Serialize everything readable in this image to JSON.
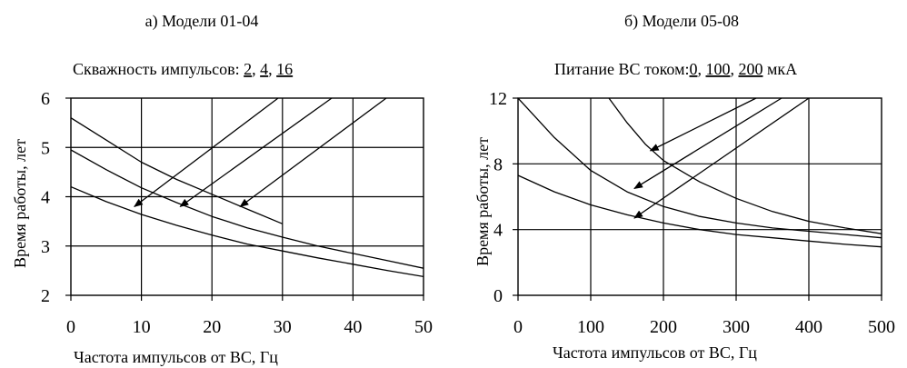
{
  "chart_data": [
    {
      "type": "line",
      "title": "а) Модели 01-04",
      "subtitle": {
        "prefix": "Скважность импульсов:",
        "values": [
          "2",
          "4",
          "16"
        ],
        "separators": [
          ",",
          ","
        ]
      },
      "xlabel": "Частота импульсов от ВС, Гц",
      "ylabel": "Время работы, лет",
      "xlim": [
        0,
        50
      ],
      "ylim": [
        2,
        6
      ],
      "x_ticks": [
        "0",
        "10",
        "20",
        "30",
        "40",
        "50"
      ],
      "y_ticks": [
        "2",
        "3",
        "4",
        "5",
        "6"
      ],
      "grid": true,
      "series": [
        {
          "name": "2",
          "x": [
            0,
            5,
            10,
            15,
            20,
            25,
            30,
            35,
            40,
            45,
            50
          ],
          "y": [
            4.2,
            3.9,
            3.64,
            3.42,
            3.22,
            3.04,
            2.9,
            2.76,
            2.63,
            2.5,
            2.38
          ]
        },
        {
          "name": "4",
          "x": [
            0,
            5,
            10,
            15,
            20,
            25,
            30,
            35,
            40,
            45,
            50
          ],
          "y": [
            4.95,
            4.55,
            4.18,
            3.88,
            3.6,
            3.37,
            3.18,
            3.0,
            2.85,
            2.7,
            2.55
          ]
        },
        {
          "name": "16",
          "x": [
            0,
            5,
            10,
            15,
            20,
            25,
            30
          ],
          "y": [
            5.6,
            5.15,
            4.7,
            4.35,
            4.05,
            3.75,
            3.45
          ]
        }
      ],
      "annotations": [
        {
          "label": "2",
          "arrow_to": [
            9,
            3.8
          ]
        },
        {
          "label": "4",
          "arrow_to": [
            15.5,
            3.8
          ]
        },
        {
          "label": "16",
          "arrow_to": [
            24,
            3.8
          ]
        }
      ]
    },
    {
      "type": "line",
      "title": "б) Модели 05-08",
      "subtitle": {
        "prefix": "Питание ВС током:",
        "values": [
          "0",
          "100",
          "200"
        ],
        "separators": [
          ",",
          ","
        ],
        "suffix": "мкА"
      },
      "xlabel": "Частота импульсов от ВС, Гц",
      "ylabel": "Время работы, лет",
      "xlim": [
        0,
        500
      ],
      "ylim": [
        0,
        12
      ],
      "x_ticks": [
        "0",
        "100",
        "200",
        "300",
        "400",
        "500"
      ],
      "y_ticks": [
        "0",
        "4",
        "8",
        "12"
      ],
      "grid": true,
      "series": [
        {
          "name": "0",
          "x": [
            0,
            50,
            100,
            150,
            200,
            250,
            300,
            350,
            400,
            450,
            500
          ],
          "y": [
            12.0,
            9.6,
            7.6,
            6.3,
            5.4,
            4.8,
            4.4,
            4.1,
            3.9,
            3.7,
            3.5
          ]
        },
        {
          "name": "100",
          "x": [
            0,
            50,
            100,
            150,
            200,
            250,
            300,
            350,
            400,
            450,
            500
          ],
          "y": [
            7.3,
            6.3,
            5.5,
            4.9,
            4.4,
            4.0,
            3.7,
            3.5,
            3.3,
            3.1,
            2.95
          ]
        },
        {
          "name": "200",
          "x": [
            125,
            150,
            175,
            200,
            250,
            300,
            350,
            400,
            450,
            500
          ],
          "y": [
            12.0,
            10.5,
            9.2,
            8.2,
            6.9,
            5.9,
            5.1,
            4.5,
            4.1,
            3.75
          ]
        }
      ],
      "annotations": [
        {
          "label": "0",
          "arrow_to": [
            182,
            8.8
          ]
        },
        {
          "label": "100",
          "arrow_to": [
            160,
            6.5
          ]
        },
        {
          "label": "200",
          "arrow_to": [
            160,
            4.7
          ]
        }
      ]
    }
  ]
}
